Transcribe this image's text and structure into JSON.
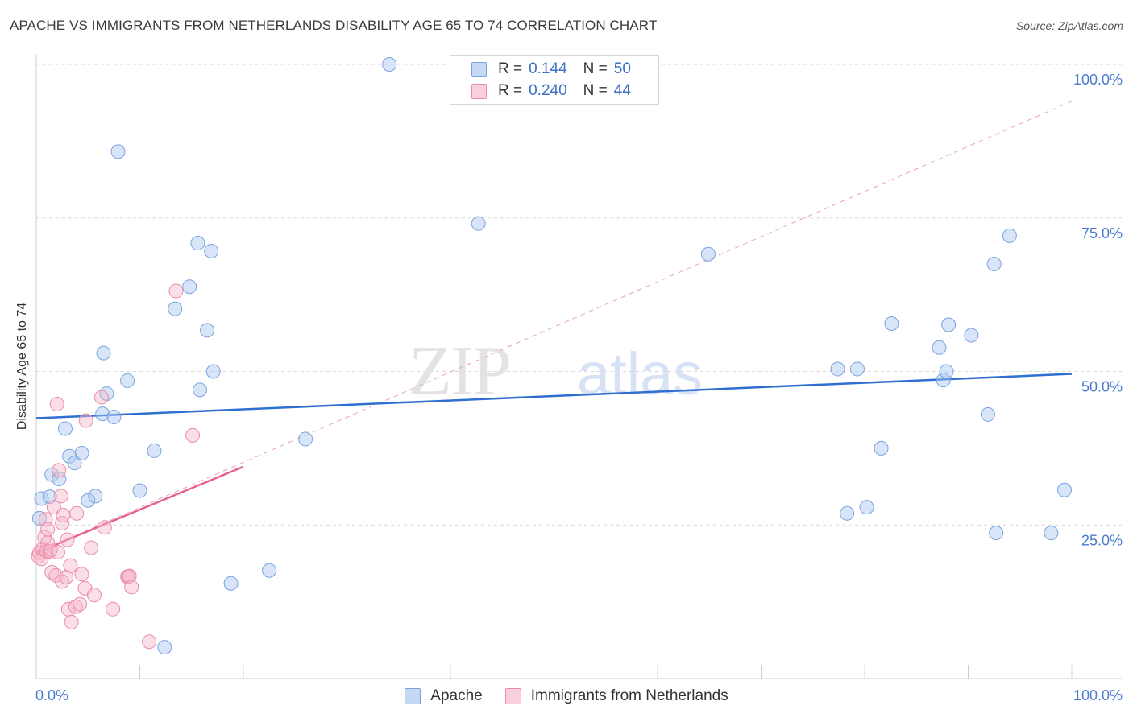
{
  "title": "APACHE VS IMMIGRANTS FROM NETHERLANDS DISABILITY AGE 65 TO 74 CORRELATION CHART",
  "source": "Source: ZipAtlas.com",
  "watermark": {
    "zip": "ZIP",
    "atlas": "atlas"
  },
  "legend_top": [
    {
      "r_label": "R =",
      "r_value": "0.144",
      "n_label": "N =",
      "n_value": "50",
      "color": "#a9c6f0"
    },
    {
      "r_label": "R =",
      "r_value": "0.240",
      "n_label": "N =",
      "n_value": "44",
      "color": "#f5b8c9"
    }
  ],
  "legend_bottom": [
    {
      "label": "Apache",
      "color": "#a9c6f0"
    },
    {
      "label": "Immigrants from Netherlands",
      "color": "#f5b8c9"
    }
  ],
  "chart_data": {
    "type": "scatter",
    "title": "APACHE VS IMMIGRANTS FROM NETHERLANDS DISABILITY AGE 65 TO 74 CORRELATION CHART",
    "xlabel": "",
    "ylabel": "Disability Age 65 to 74",
    "xlim": [
      0,
      100
    ],
    "ylim": [
      0,
      102
    ],
    "x_tick_labels": [
      "0.0%",
      "100.0%"
    ],
    "y_ticks": [
      25,
      50,
      75,
      100
    ],
    "y_tick_labels": [
      "25.0%",
      "50.0%",
      "75.0%",
      "100.0%"
    ],
    "grid": true,
    "series": [
      {
        "name": "Apache",
        "color": "#a9c6f0",
        "stroke": "#7aa3e0",
        "points": [
          [
            0.3,
            26.1
          ],
          [
            0.5,
            29.3
          ],
          [
            1.3,
            29.6
          ],
          [
            1.5,
            33.2
          ],
          [
            2.2,
            32.5
          ],
          [
            2.8,
            40.7
          ],
          [
            3.2,
            36.2
          ],
          [
            3.7,
            35.1
          ],
          [
            4.4,
            36.7
          ],
          [
            5.0,
            29.0
          ],
          [
            5.7,
            29.7
          ],
          [
            6.4,
            43.1
          ],
          [
            6.5,
            53.0
          ],
          [
            6.8,
            46.4
          ],
          [
            7.5,
            42.6
          ],
          [
            7.9,
            85.8
          ],
          [
            8.8,
            48.5
          ],
          [
            10.0,
            30.6
          ],
          [
            11.4,
            37.1
          ],
          [
            12.4,
            5.1
          ],
          [
            13.4,
            60.2
          ],
          [
            14.8,
            63.8
          ],
          [
            15.6,
            70.9
          ],
          [
            15.8,
            47.0
          ],
          [
            16.5,
            56.7
          ],
          [
            16.9,
            69.6
          ],
          [
            17.1,
            50.0
          ],
          [
            18.8,
            15.5
          ],
          [
            22.5,
            17.6
          ],
          [
            26.0,
            39.0
          ],
          [
            34.1,
            100.0
          ],
          [
            42.7,
            74.1
          ],
          [
            64.9,
            69.1
          ],
          [
            77.4,
            50.4
          ],
          [
            78.3,
            26.9
          ],
          [
            79.3,
            50.4
          ],
          [
            80.2,
            27.9
          ],
          [
            81.6,
            37.5
          ],
          [
            82.6,
            57.8
          ],
          [
            87.2,
            53.9
          ],
          [
            87.6,
            48.6
          ],
          [
            87.9,
            50.0
          ],
          [
            88.1,
            57.6
          ],
          [
            90.3,
            55.9
          ],
          [
            91.9,
            43.0
          ],
          [
            92.5,
            67.5
          ],
          [
            92.7,
            23.7
          ],
          [
            94.0,
            72.1
          ],
          [
            98.0,
            23.7
          ],
          [
            99.3,
            30.7
          ]
        ],
        "trend": {
          "x": [
            0,
            100
          ],
          "y": [
            42.4,
            49.6
          ],
          "style": "solid"
        }
      },
      {
        "name": "Immigrants from Netherlands",
        "color": "#f5b8c9",
        "stroke": "#ec8ba8",
        "points": [
          [
            0.2,
            19.9
          ],
          [
            0.3,
            20.5
          ],
          [
            0.5,
            19.5
          ],
          [
            0.6,
            21.1
          ],
          [
            0.8,
            23.0
          ],
          [
            0.9,
            25.9
          ],
          [
            1.0,
            20.7
          ],
          [
            1.1,
            24.3
          ],
          [
            1.1,
            22.1
          ],
          [
            1.3,
            20.7
          ],
          [
            1.4,
            21.0
          ],
          [
            1.5,
            17.3
          ],
          [
            1.7,
            27.9
          ],
          [
            1.9,
            16.8
          ],
          [
            2.0,
            44.7
          ],
          [
            2.1,
            20.6
          ],
          [
            2.2,
            33.9
          ],
          [
            2.4,
            29.7
          ],
          [
            2.5,
            15.8
          ],
          [
            2.5,
            25.3
          ],
          [
            2.6,
            26.6
          ],
          [
            2.9,
            16.5
          ],
          [
            3.0,
            22.6
          ],
          [
            3.1,
            11.3
          ],
          [
            3.3,
            18.4
          ],
          [
            3.4,
            9.2
          ],
          [
            3.8,
            11.7
          ],
          [
            3.9,
            26.9
          ],
          [
            4.2,
            12.1
          ],
          [
            4.4,
            17.0
          ],
          [
            4.7,
            14.7
          ],
          [
            4.8,
            42.0
          ],
          [
            5.3,
            21.3
          ],
          [
            5.6,
            13.6
          ],
          [
            6.3,
            45.8
          ],
          [
            6.6,
            24.6
          ],
          [
            7.4,
            11.3
          ],
          [
            8.8,
            16.6
          ],
          [
            8.9,
            16.6
          ],
          [
            9.0,
            16.7
          ],
          [
            9.2,
            14.9
          ],
          [
            10.9,
            6.0
          ],
          [
            13.5,
            63.1
          ],
          [
            15.1,
            39.6
          ]
        ],
        "trend": {
          "x": [
            0,
            20
          ],
          "y": [
            20.5,
            34.5
          ],
          "style": "solid"
        },
        "trend_extension": {
          "x": [
            0,
            100
          ],
          "y": [
            20.5,
            94.0
          ],
          "style": "dashed"
        }
      }
    ]
  }
}
